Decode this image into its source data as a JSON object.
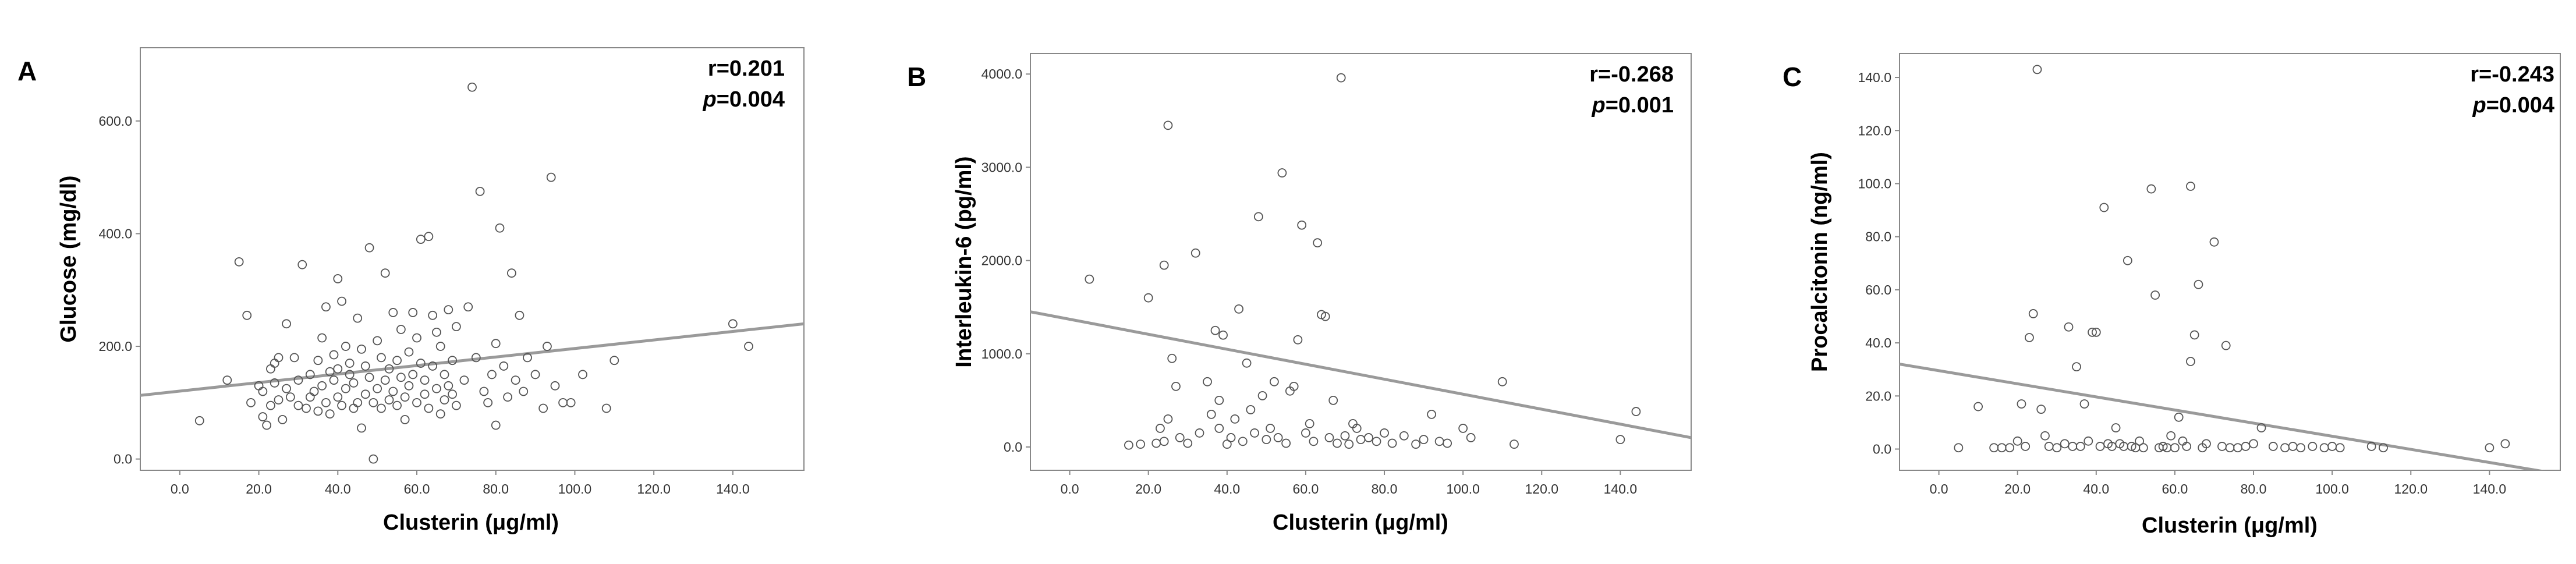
{
  "chart_data": [
    {
      "panel": "A",
      "type": "scatter",
      "xlabel": "Clusterin (μg/ml)",
      "ylabel": "Glucose (mg/dl)",
      "xlim": [
        -10,
        158
      ],
      "ylim": [
        -20,
        730
      ],
      "xticks": [
        "0.0",
        "20.0",
        "40.0",
        "60.0",
        "80.0",
        "100.0",
        "120.0",
        "140.0"
      ],
      "yticks": [
        "0.0",
        "200.0",
        "400.0",
        "600.0"
      ],
      "r_text": "r=0.201",
      "p_label": "p",
      "p_value": "=0.004",
      "fit_line": {
        "x": [
          -10,
          158
        ],
        "y": [
          113,
          240
        ]
      },
      "points": [
        [
          5,
          68
        ],
        [
          12,
          140
        ],
        [
          15,
          350
        ],
        [
          17,
          255
        ],
        [
          18,
          100
        ],
        [
          20,
          130
        ],
        [
          21,
          75
        ],
        [
          21,
          120
        ],
        [
          22,
          60
        ],
        [
          23,
          95
        ],
        [
          23,
          160
        ],
        [
          24,
          135
        ],
        [
          24,
          170
        ],
        [
          25,
          105
        ],
        [
          25,
          180
        ],
        [
          26,
          70
        ],
        [
          27,
          240
        ],
        [
          27,
          125
        ],
        [
          28,
          110
        ],
        [
          29,
          180
        ],
        [
          30,
          95
        ],
        [
          30,
          140
        ],
        [
          31,
          345
        ],
        [
          32,
          90
        ],
        [
          33,
          150
        ],
        [
          33,
          110
        ],
        [
          34,
          120
        ],
        [
          35,
          85
        ],
        [
          35,
          175
        ],
        [
          36,
          215
        ],
        [
          36,
          130
        ],
        [
          37,
          100
        ],
        [
          37,
          270
        ],
        [
          38,
          155
        ],
        [
          38,
          80
        ],
        [
          39,
          140
        ],
        [
          39,
          185
        ],
        [
          40,
          110
        ],
        [
          40,
          320
        ],
        [
          40,
          160
        ],
        [
          41,
          280
        ],
        [
          41,
          95
        ],
        [
          42,
          200
        ],
        [
          42,
          125
        ],
        [
          43,
          150
        ],
        [
          43,
          170
        ],
        [
          44,
          90
        ],
        [
          44,
          135
        ],
        [
          45,
          250
        ],
        [
          45,
          100
        ],
        [
          46,
          195
        ],
        [
          46,
          55
        ],
        [
          47,
          115
        ],
        [
          47,
          165
        ],
        [
          48,
          145
        ],
        [
          48,
          375
        ],
        [
          49,
          0
        ],
        [
          49,
          100
        ],
        [
          50,
          210
        ],
        [
          50,
          125
        ],
        [
          51,
          90
        ],
        [
          51,
          180
        ],
        [
          52,
          330
        ],
        [
          52,
          140
        ],
        [
          53,
          105
        ],
        [
          53,
          160
        ],
        [
          54,
          260
        ],
        [
          54,
          120
        ],
        [
          55,
          175
        ],
        [
          55,
          95
        ],
        [
          56,
          145
        ],
        [
          56,
          230
        ],
        [
          57,
          110
        ],
        [
          57,
          70
        ],
        [
          58,
          190
        ],
        [
          58,
          130
        ],
        [
          59,
          260
        ],
        [
          59,
          150
        ],
        [
          60,
          215
        ],
        [
          60,
          100
        ],
        [
          61,
          390
        ],
        [
          61,
          170
        ],
        [
          62,
          140
        ],
        [
          62,
          115
        ],
        [
          63,
          90
        ],
        [
          63,
          395
        ],
        [
          64,
          255
        ],
        [
          64,
          165
        ],
        [
          65,
          125
        ],
        [
          65,
          225
        ],
        [
          66,
          80
        ],
        [
          66,
          200
        ],
        [
          67,
          150
        ],
        [
          67,
          105
        ],
        [
          68,
          265
        ],
        [
          68,
          130
        ],
        [
          69,
          175
        ],
        [
          69,
          115
        ],
        [
          70,
          235
        ],
        [
          70,
          95
        ],
        [
          72,
          140
        ],
        [
          73,
          270
        ],
        [
          74,
          660
        ],
        [
          75,
          180
        ],
        [
          76,
          475
        ],
        [
          77,
          120
        ],
        [
          78,
          100
        ],
        [
          79,
          150
        ],
        [
          80,
          60
        ],
        [
          80,
          205
        ],
        [
          81,
          410
        ],
        [
          82,
          165
        ],
        [
          83,
          110
        ],
        [
          84,
          330
        ],
        [
          85,
          140
        ],
        [
          86,
          255
        ],
        [
          87,
          120
        ],
        [
          88,
          180
        ],
        [
          90,
          150
        ],
        [
          92,
          90
        ],
        [
          93,
          200
        ],
        [
          94,
          500
        ],
        [
          95,
          130
        ],
        [
          97,
          100
        ],
        [
          99,
          100
        ],
        [
          102,
          150
        ],
        [
          108,
          90
        ],
        [
          110,
          175
        ],
        [
          140,
          240
        ],
        [
          144,
          200
        ]
      ]
    },
    {
      "panel": "B",
      "type": "scatter",
      "xlabel": "Clusterin (μg/ml)",
      "ylabel": "Interleukin-6 (pg/ml)",
      "xlim": [
        -10,
        158
      ],
      "ylim": [
        -250,
        4220
      ],
      "xticks": [
        "0.0",
        "20.0",
        "40.0",
        "60.0",
        "80.0",
        "100.0",
        "120.0",
        "140.0"
      ],
      "yticks": [
        "0.0",
        "1000.0",
        "2000.0",
        "3000.0",
        "4000.0"
      ],
      "r_text": "r=-0.268",
      "p_label": "p",
      "p_value": "=0.001",
      "fit_line": {
        "x": [
          -10,
          158
        ],
        "y": [
          1450,
          100
        ]
      },
      "points": [
        [
          5,
          1800
        ],
        [
          15,
          20
        ],
        [
          18,
          30
        ],
        [
          20,
          1600
        ],
        [
          22,
          40
        ],
        [
          23,
          200
        ],
        [
          24,
          1950
        ],
        [
          24,
          60
        ],
        [
          25,
          3450
        ],
        [
          25,
          300
        ],
        [
          26,
          950
        ],
        [
          27,
          650
        ],
        [
          28,
          100
        ],
        [
          30,
          40
        ],
        [
          32,
          2080
        ],
        [
          33,
          150
        ],
        [
          35,
          700
        ],
        [
          36,
          350
        ],
        [
          37,
          1250
        ],
        [
          38,
          500
        ],
        [
          38,
          200
        ],
        [
          39,
          1200
        ],
        [
          40,
          30
        ],
        [
          41,
          100
        ],
        [
          42,
          300
        ],
        [
          43,
          1480
        ],
        [
          44,
          60
        ],
        [
          45,
          900
        ],
        [
          46,
          400
        ],
        [
          47,
          150
        ],
        [
          48,
          2470
        ],
        [
          49,
          550
        ],
        [
          50,
          80
        ],
        [
          51,
          200
        ],
        [
          52,
          700
        ],
        [
          53,
          100
        ],
        [
          54,
          2940
        ],
        [
          55,
          40
        ],
        [
          56,
          600
        ],
        [
          57,
          650
        ],
        [
          58,
          1150
        ],
        [
          59,
          2380
        ],
        [
          60,
          150
        ],
        [
          61,
          250
        ],
        [
          62,
          60
        ],
        [
          63,
          2190
        ],
        [
          64,
          1420
        ],
        [
          65,
          1400
        ],
        [
          66,
          100
        ],
        [
          67,
          500
        ],
        [
          68,
          40
        ],
        [
          69,
          3960
        ],
        [
          70,
          120
        ],
        [
          71,
          30
        ],
        [
          72,
          250
        ],
        [
          73,
          200
        ],
        [
          74,
          80
        ],
        [
          76,
          100
        ],
        [
          78,
          60
        ],
        [
          80,
          150
        ],
        [
          82,
          40
        ],
        [
          85,
          120
        ],
        [
          88,
          30
        ],
        [
          90,
          80
        ],
        [
          92,
          350
        ],
        [
          94,
          60
        ],
        [
          96,
          40
        ],
        [
          100,
          200
        ],
        [
          102,
          100
        ],
        [
          110,
          700
        ],
        [
          113,
          30
        ],
        [
          140,
          80
        ],
        [
          144,
          380
        ]
      ]
    },
    {
      "panel": "C",
      "type": "scatter",
      "xlabel": "Clusterin (μg/ml)",
      "ylabel": "Procalcitonin (ng/ml)",
      "xlim": [
        -10,
        158
      ],
      "ylim": [
        -8,
        149
      ],
      "xticks": [
        "0.0",
        "20.0",
        "40.0",
        "60.0",
        "80.0",
        "100.0",
        "120.0",
        "140.0"
      ],
      "yticks": [
        "0.0",
        "20.0",
        "40.0",
        "60.0",
        "80.0",
        "100.0",
        "120.0",
        "140.0"
      ],
      "r_text": "r=-0.243",
      "p_label": "p",
      "p_value": "=0.004",
      "fit_line": {
        "x": [
          -10,
          158
        ],
        "y": [
          32,
          -9.5
        ]
      },
      "points": [
        [
          5,
          0.5
        ],
        [
          10,
          16
        ],
        [
          14,
          0.5
        ],
        [
          16,
          0.5
        ],
        [
          18,
          0.5
        ],
        [
          20,
          3
        ],
        [
          21,
          17
        ],
        [
          22,
          1
        ],
        [
          23,
          42
        ],
        [
          24,
          51
        ],
        [
          25,
          143
        ],
        [
          26,
          15
        ],
        [
          27,
          5
        ],
        [
          28,
          1
        ],
        [
          30,
          0.5
        ],
        [
          32,
          2
        ],
        [
          33,
          46
        ],
        [
          34,
          1
        ],
        [
          35,
          31
        ],
        [
          36,
          1
        ],
        [
          37,
          17
        ],
        [
          38,
          3
        ],
        [
          39,
          44
        ],
        [
          40,
          44
        ],
        [
          41,
          1
        ],
        [
          42,
          91
        ],
        [
          43,
          2
        ],
        [
          44,
          1
        ],
        [
          45,
          8
        ],
        [
          46,
          2
        ],
        [
          47,
          1
        ],
        [
          48,
          71
        ],
        [
          49,
          1
        ],
        [
          50,
          0.5
        ],
        [
          51,
          3
        ],
        [
          52,
          0.5
        ],
        [
          54,
          98
        ],
        [
          55,
          58
        ],
        [
          56,
          0.5
        ],
        [
          57,
          1
        ],
        [
          58,
          0.5
        ],
        [
          59,
          5
        ],
        [
          60,
          0.5
        ],
        [
          61,
          12
        ],
        [
          62,
          3
        ],
        [
          63,
          1
        ],
        [
          64,
          33
        ],
        [
          64,
          99
        ],
        [
          65,
          43
        ],
        [
          66,
          62
        ],
        [
          67,
          0.5
        ],
        [
          68,
          2
        ],
        [
          70,
          78
        ],
        [
          72,
          1
        ],
        [
          73,
          39
        ],
        [
          74,
          0.5
        ],
        [
          76,
          0.5
        ],
        [
          78,
          1
        ],
        [
          80,
          2
        ],
        [
          82,
          8
        ],
        [
          85,
          1
        ],
        [
          88,
          0.5
        ],
        [
          90,
          1
        ],
        [
          92,
          0.5
        ],
        [
          95,
          1
        ],
        [
          98,
          0.5
        ],
        [
          100,
          1
        ],
        [
          102,
          0.5
        ],
        [
          110,
          1
        ],
        [
          113,
          0.5
        ],
        [
          140,
          0.5
        ],
        [
          144,
          2
        ]
      ]
    }
  ]
}
